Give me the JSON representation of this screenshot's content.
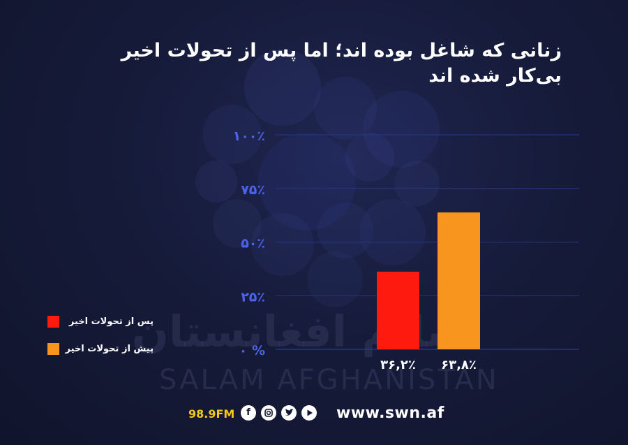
{
  "title": {
    "line1": "زنانی که شاغل بوده اند؛ اما پس از تحولات اخیر",
    "line2": "بی‌کار شده اند"
  },
  "chart_data": {
    "type": "bar",
    "title": "زنانی که شاغل بوده اند؛ اما پس از تحولات اخیر بی‌کار شده اند",
    "y_ticks": [
      "۰ %",
      "۲۵٪",
      "۵۰٪",
      "۷۵٪",
      "۱۰۰٪"
    ],
    "ylim": [
      0,
      100
    ],
    "grid": true,
    "categories": [
      "پس از تحولات اخیر",
      "پیش از تحولات اخیر"
    ],
    "values": [
      36.2,
      63.8
    ],
    "value_labels": [
      "۳۶,۲٪",
      "۶۳,۸٪"
    ],
    "colors": [
      "#ff1a10",
      "#f7951e"
    ],
    "legend_position": "left"
  },
  "legend": [
    {
      "label": "پس از تحولات اخیر",
      "color": "#ff1a10"
    },
    {
      "label": "پیش از تحولات اخیر",
      "color": "#f7951e"
    }
  ],
  "watermark": {
    "fa": "سلام افغانستان",
    "en": "SALAM AFGHANISTAN"
  },
  "footer": {
    "frequency": "98.9FM",
    "website": "www.swn.af",
    "icons": [
      "facebook-icon",
      "instagram-icon",
      "twitter-icon",
      "youtube-icon"
    ]
  }
}
